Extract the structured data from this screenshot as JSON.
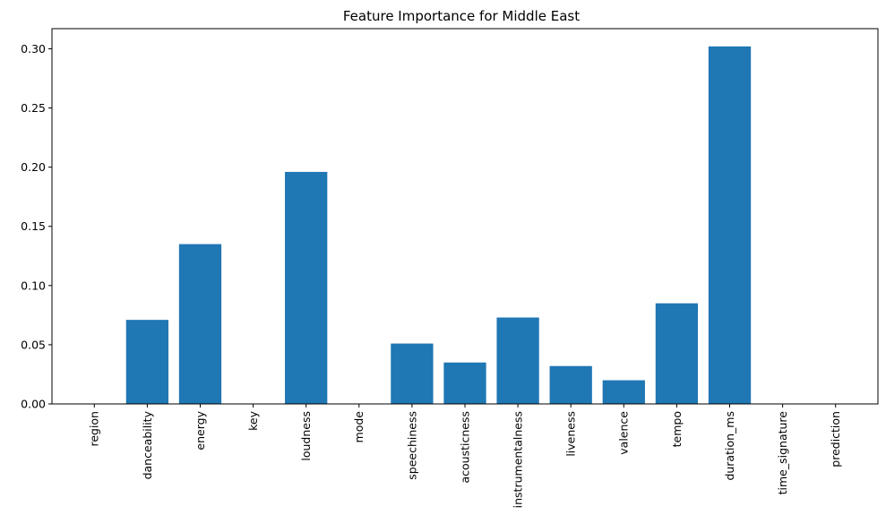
{
  "chart_data": {
    "type": "bar",
    "title": "Feature Importance for Middle East",
    "xlabel": "",
    "ylabel": "",
    "categories": [
      "region",
      "danceability",
      "energy",
      "key",
      "loudness",
      "mode",
      "speechiness",
      "acousticness",
      "instrumentalness",
      "liveness",
      "valence",
      "tempo",
      "duration_ms",
      "time_signature",
      "prediction"
    ],
    "values": [
      0.0,
      0.071,
      0.135,
      0.0,
      0.196,
      0.0,
      0.051,
      0.035,
      0.073,
      0.032,
      0.02,
      0.085,
      0.302,
      0.0,
      0.0
    ],
    "ylim": [
      0,
      0.317
    ],
    "yticks": [
      0.0,
      0.05,
      0.1,
      0.15,
      0.2,
      0.25,
      0.3
    ],
    "ytick_labels": [
      "0.00",
      "0.05",
      "0.10",
      "0.15",
      "0.20",
      "0.25",
      "0.30"
    ],
    "grid": false,
    "bar_color": "#1f77b4"
  }
}
